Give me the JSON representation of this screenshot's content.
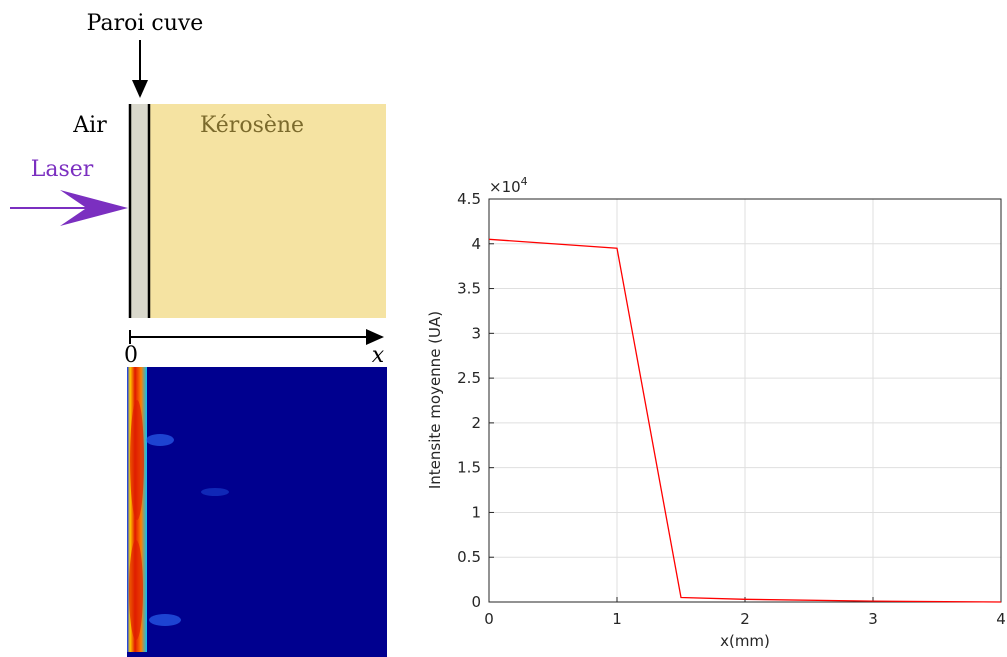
{
  "diagram": {
    "wall_label": "Paroi cuve",
    "air_label": "Air",
    "liquid_label": "Kérosène",
    "laser_label": "Laser",
    "axis_origin": "0",
    "axis_label": "x"
  },
  "chart_data": {
    "type": "line",
    "xlabel": "x(mm)",
    "ylabel": "Intensite moyenne (UA)",
    "y_multiplier": "×10",
    "y_multiplier_exp": "4",
    "x": [
      0,
      1,
      1.5,
      2,
      3,
      4
    ],
    "series": [
      {
        "name": "Intensite",
        "color": "#ff0000",
        "values": [
          4.05,
          3.95,
          0.05,
          0.03,
          0.01,
          0
        ]
      }
    ],
    "xlim": [
      0,
      4
    ],
    "xticks": [
      0,
      1,
      2,
      3,
      4
    ],
    "ylim": [
      0,
      4.5
    ],
    "yticks": [
      0,
      0.5,
      1,
      1.5,
      2,
      2.5,
      3,
      3.5,
      4,
      4.5
    ],
    "grid": true
  }
}
